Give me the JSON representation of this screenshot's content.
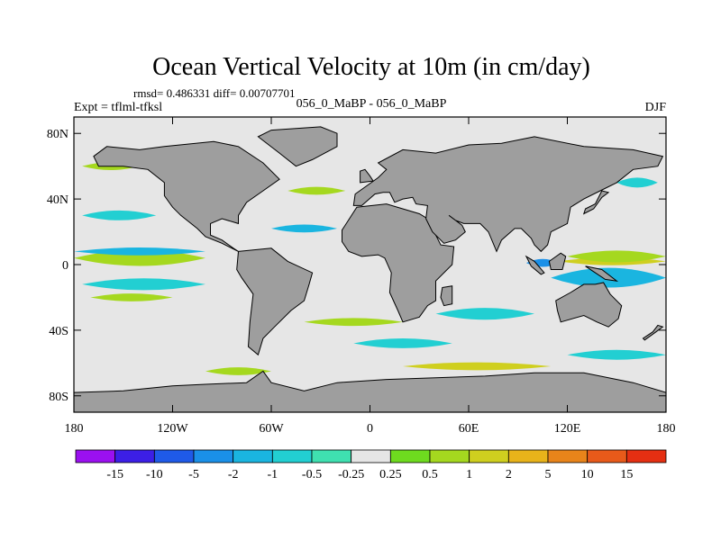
{
  "chart_data": {
    "type": "heatmap",
    "title": "Ocean Vertical Velocity at 10m (in cm/day)",
    "stats_line": "rmsd= 0.486331 diff= 0.00707701",
    "left_label": "Expt = tflml-tfksl",
    "center_label": "056_0_MaBP - 056_0_MaBP",
    "right_label": "DJF",
    "x_range": [
      -180,
      180
    ],
    "y_range": [
      -90,
      90
    ],
    "x_ticks": [
      {
        "value": -180,
        "label": "180"
      },
      {
        "value": -120,
        "label": "120W"
      },
      {
        "value": -60,
        "label": "60W"
      },
      {
        "value": 0,
        "label": "0"
      },
      {
        "value": 60,
        "label": "60E"
      },
      {
        "value": 120,
        "label": "120E"
      },
      {
        "value": 180,
        "label": "180"
      }
    ],
    "y_ticks": [
      {
        "value": 80,
        "label": "80N"
      },
      {
        "value": 40,
        "label": "40N"
      },
      {
        "value": 0,
        "label": "0"
      },
      {
        "value": -40,
        "label": "40S"
      },
      {
        "value": -80,
        "label": "80S"
      }
    ],
    "colorbar": {
      "colors": [
        "#9b10f0",
        "#3c1fe6",
        "#1f5ae8",
        "#1a90e8",
        "#1ab5e0",
        "#22cfd2",
        "#3fe0b0",
        "#e6e6e6",
        "#6edb1f",
        "#a5d81f",
        "#cfcf1f",
        "#e8b31a",
        "#e8841a",
        "#e85a1a",
        "#e52f12"
      ],
      "levels": [
        "-15",
        "-10",
        "-5",
        "-2",
        "-1",
        "-0.5",
        "-0.25",
        "0.25",
        "0.5",
        "1",
        "2",
        "5",
        "10",
        "15"
      ]
    },
    "field_bands": [
      {
        "lat": 3,
        "level": 12,
        "lon_start": -175,
        "lon_end": -130,
        "height": 4
      },
      {
        "lat": 4,
        "level": 9,
        "lon_start": -180,
        "lon_end": -100,
        "height": 8
      },
      {
        "lat": 8,
        "level": 4,
        "lon_start": -180,
        "lon_end": -100,
        "height": 4
      },
      {
        "lat": 1,
        "level": 3,
        "lon_start": 95,
        "lon_end": 115,
        "height": 4
      },
      {
        "lat": 2,
        "level": 10,
        "lon_start": 115,
        "lon_end": 180,
        "height": 4
      },
      {
        "lat": 5,
        "level": 9,
        "lon_start": 120,
        "lon_end": 180,
        "height": 6
      },
      {
        "lat": -8,
        "level": 4,
        "lon_start": 110,
        "lon_end": 180,
        "height": 10
      },
      {
        "lat": -12,
        "level": 5,
        "lon_start": -175,
        "lon_end": -100,
        "height": 6
      },
      {
        "lat": 30,
        "level": 5,
        "lon_start": -175,
        "lon_end": -130,
        "height": 5
      },
      {
        "lat": 60,
        "level": 9,
        "lon_start": -175,
        "lon_end": -140,
        "height": 4
      },
      {
        "lat": 50,
        "level": 5,
        "lon_start": 150,
        "lon_end": 175,
        "height": 5
      },
      {
        "lat": -35,
        "level": 9,
        "lon_start": -40,
        "lon_end": 20,
        "height": 4
      },
      {
        "lat": -48,
        "level": 5,
        "lon_start": -10,
        "lon_end": 50,
        "height": 5
      },
      {
        "lat": -62,
        "level": 10,
        "lon_start": 20,
        "lon_end": 110,
        "height": 4
      },
      {
        "lat": -65,
        "level": 9,
        "lon_start": -100,
        "lon_end": -60,
        "height": 4
      },
      {
        "lat": -30,
        "level": 5,
        "lon_start": 40,
        "lon_end": 100,
        "height": 6
      },
      {
        "lat": -20,
        "level": 9,
        "lon_start": -170,
        "lon_end": -120,
        "height": 4
      },
      {
        "lat": 22,
        "level": 4,
        "lon_start": -60,
        "lon_end": -20,
        "height": 4
      },
      {
        "lat": 45,
        "level": 9,
        "lon_start": -50,
        "lon_end": -15,
        "height": 4
      },
      {
        "lat": -55,
        "level": 5,
        "lon_start": 120,
        "lon_end": 180,
        "height": 5
      }
    ],
    "land": [
      {
        "name": "North America",
        "lonlat": [
          [
            -168,
            66
          ],
          [
            -160,
            72
          ],
          [
            -140,
            70
          ],
          [
            -125,
            72
          ],
          [
            -95,
            75
          ],
          [
            -80,
            72
          ],
          [
            -65,
            62
          ],
          [
            -55,
            52
          ],
          [
            -65,
            45
          ],
          [
            -75,
            38
          ],
          [
            -80,
            30
          ],
          [
            -80,
            25
          ],
          [
            -90,
            28
          ],
          [
            -97,
            25
          ],
          [
            -97,
            18
          ],
          [
            -90,
            15
          ],
          [
            -83,
            10
          ],
          [
            -80,
            8
          ],
          [
            -90,
            13
          ],
          [
            -100,
            17
          ],
          [
            -105,
            22
          ],
          [
            -115,
            30
          ],
          [
            -120,
            35
          ],
          [
            -125,
            42
          ],
          [
            -125,
            50
          ],
          [
            -135,
            58
          ],
          [
            -150,
            60
          ],
          [
            -165,
            60
          ]
        ]
      },
      {
        "name": "Greenland",
        "lonlat": [
          [
            -60,
            82
          ],
          [
            -30,
            84
          ],
          [
            -20,
            80
          ],
          [
            -20,
            72
          ],
          [
            -35,
            64
          ],
          [
            -45,
            60
          ],
          [
            -55,
            68
          ],
          [
            -68,
            78
          ]
        ]
      },
      {
        "name": "South America",
        "lonlat": [
          [
            -80,
            8
          ],
          [
            -60,
            10
          ],
          [
            -50,
            2
          ],
          [
            -35,
            -5
          ],
          [
            -37,
            -12
          ],
          [
            -40,
            -22
          ],
          [
            -48,
            -28
          ],
          [
            -58,
            -38
          ],
          [
            -65,
            -45
          ],
          [
            -68,
            -55
          ],
          [
            -74,
            -50
          ],
          [
            -73,
            -35
          ],
          [
            -71,
            -18
          ],
          [
            -78,
            -8
          ],
          [
            -81,
            -3
          ]
        ]
      },
      {
        "name": "Africa",
        "lonlat": [
          [
            -17,
            21
          ],
          [
            -8,
            35
          ],
          [
            10,
            37
          ],
          [
            30,
            31
          ],
          [
            35,
            28
          ],
          [
            43,
            12
          ],
          [
            51,
            11
          ],
          [
            50,
            0
          ],
          [
            40,
            -10
          ],
          [
            40,
            -22
          ],
          [
            35,
            -25
          ],
          [
            30,
            -32
          ],
          [
            20,
            -35
          ],
          [
            17,
            -28
          ],
          [
            12,
            -17
          ],
          [
            13,
            -5
          ],
          [
            9,
            4
          ],
          [
            5,
            6
          ],
          [
            -5,
            5
          ],
          [
            -13,
            8
          ],
          [
            -17,
            14
          ]
        ]
      },
      {
        "name": "Madagascar",
        "lonlat": [
          [
            44,
            -14
          ],
          [
            50,
            -13
          ],
          [
            50,
            -24
          ],
          [
            45,
            -25
          ],
          [
            43,
            -20
          ]
        ]
      },
      {
        "name": "Eurasia",
        "lonlat": [
          [
            -10,
            36
          ],
          [
            -9,
            43
          ],
          [
            -2,
            48
          ],
          [
            5,
            53
          ],
          [
            10,
            58
          ],
          [
            5,
            62
          ],
          [
            20,
            70
          ],
          [
            40,
            68
          ],
          [
            60,
            73
          ],
          [
            80,
            74
          ],
          [
            100,
            78
          ],
          [
            130,
            72
          ],
          [
            160,
            70
          ],
          [
            178,
            66
          ],
          [
            175,
            60
          ],
          [
            160,
            58
          ],
          [
            150,
            50
          ],
          [
            140,
            45
          ],
          [
            130,
            40
          ],
          [
            122,
            35
          ],
          [
            120,
            25
          ],
          [
            110,
            20
          ],
          [
            108,
            12
          ],
          [
            104,
            8
          ],
          [
            100,
            12
          ],
          [
            98,
            16
          ],
          [
            92,
            22
          ],
          [
            88,
            22
          ],
          [
            80,
            15
          ],
          [
            77,
            8
          ],
          [
            72,
            20
          ],
          [
            67,
            25
          ],
          [
            57,
            25
          ],
          [
            52,
            27
          ],
          [
            48,
            30
          ],
          [
            56,
            24
          ],
          [
            58,
            20
          ],
          [
            52,
            15
          ],
          [
            45,
            13
          ],
          [
            38,
            20
          ],
          [
            34,
            28
          ],
          [
            35,
            36
          ],
          [
            28,
            37
          ],
          [
            26,
            41
          ],
          [
            20,
            40
          ],
          [
            15,
            38
          ],
          [
            12,
            44
          ],
          [
            8,
            44
          ],
          [
            3,
            43
          ],
          [
            -5,
            36
          ]
        ]
      },
      {
        "name": "Australia",
        "lonlat": [
          [
            113,
            -22
          ],
          [
            122,
            -17
          ],
          [
            130,
            -12
          ],
          [
            137,
            -12
          ],
          [
            142,
            -11
          ],
          [
            146,
            -18
          ],
          [
            153,
            -25
          ],
          [
            151,
            -33
          ],
          [
            145,
            -38
          ],
          [
            138,
            -35
          ],
          [
            130,
            -31
          ],
          [
            116,
            -35
          ],
          [
            114,
            -28
          ]
        ]
      },
      {
        "name": "Borneo",
        "lonlat": [
          [
            109,
            2
          ],
          [
            116,
            7
          ],
          [
            119,
            5
          ],
          [
            117,
            -3
          ],
          [
            110,
            -3
          ]
        ]
      },
      {
        "name": "Sumatra",
        "lonlat": [
          [
            95,
            5
          ],
          [
            100,
            2
          ],
          [
            106,
            -5
          ],
          [
            104,
            -6
          ],
          [
            98,
            -1
          ]
        ]
      },
      {
        "name": "New Guinea",
        "lonlat": [
          [
            131,
            -1
          ],
          [
            141,
            -3
          ],
          [
            150,
            -10
          ],
          [
            143,
            -9
          ],
          [
            137,
            -5
          ]
        ]
      },
      {
        "name": "Japan",
        "lonlat": [
          [
            130,
            31
          ],
          [
            136,
            34
          ],
          [
            141,
            41
          ],
          [
            145,
            44
          ],
          [
            141,
            45
          ],
          [
            137,
            37
          ],
          [
            131,
            34
          ]
        ]
      },
      {
        "name": "United Kingdom",
        "lonlat": [
          [
            -6,
            50
          ],
          [
            2,
            51
          ],
          [
            0,
            54
          ],
          [
            -3,
            58
          ],
          [
            -6,
            57
          ]
        ]
      },
      {
        "name": "New Zealand",
        "lonlat": [
          [
            167,
            -46
          ],
          [
            174,
            -41
          ],
          [
            178,
            -38
          ],
          [
            175,
            -37
          ],
          [
            172,
            -41
          ],
          [
            166,
            -45
          ]
        ]
      },
      {
        "name": "Antarctica",
        "lonlat": [
          [
            -180,
            -90
          ],
          [
            180,
            -90
          ],
          [
            180,
            -78
          ],
          [
            160,
            -72
          ],
          [
            130,
            -66
          ],
          [
            100,
            -66
          ],
          [
            70,
            -68
          ],
          [
            40,
            -69
          ],
          [
            10,
            -70
          ],
          [
            -20,
            -72
          ],
          [
            -40,
            -77
          ],
          [
            -60,
            -72
          ],
          [
            -65,
            -65
          ],
          [
            -75,
            -72
          ],
          [
            -100,
            -73
          ],
          [
            -120,
            -74
          ],
          [
            -150,
            -77
          ],
          [
            -180,
            -78
          ]
        ]
      }
    ]
  }
}
